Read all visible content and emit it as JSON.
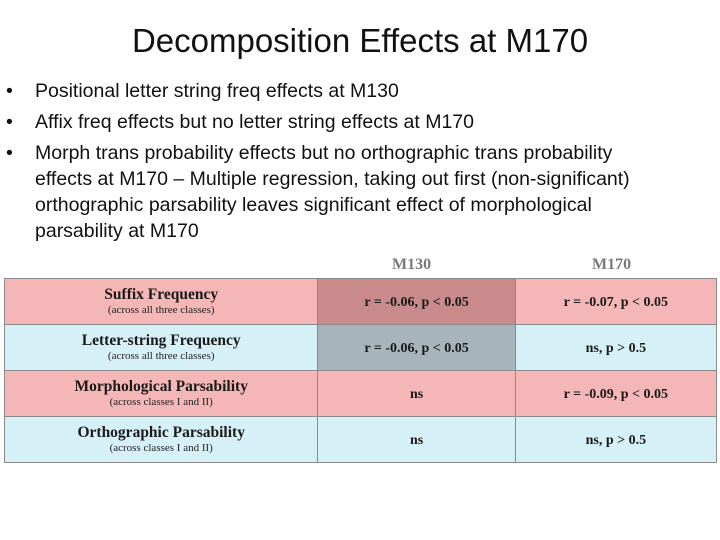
{
  "slide": {
    "title": "Decomposition Effects at M170",
    "bullets": [
      "Positional letter string freq effects at M130",
      "Affix freq effects but no letter string effects at M170",
      "Morph trans probability effects but no orthographic trans probability effects at M170 – Multiple regression, taking out first (non-significant) orthographic parsability leaves significant effect of morphological parsability at M170"
    ]
  },
  "table": {
    "columns": [
      "M130",
      "M170"
    ],
    "rows": [
      {
        "label": "Suffix Frequency",
        "sublabel": "(across all three classes)",
        "m130": "r = -0.06, p < 0.05",
        "m170": "r = -0.07, p < 0.05"
      },
      {
        "label": "Letter-string Frequency",
        "sublabel": "(across all three classes)",
        "m130": "r = -0.06, p < 0.05",
        "m170": "ns, p > 0.5"
      },
      {
        "label": "Morphological Parsability",
        "sublabel": "(across classes I and II)",
        "m130": "ns",
        "m170": "r = -0.09, p < 0.05"
      },
      {
        "label": "Orthographic Parsability",
        "sublabel": "(across classes I and II)",
        "m130": "ns",
        "m170": "ns, p > 0.5"
      }
    ]
  },
  "colors": {
    "row_pink": "#f4b6b6",
    "row_blue": "#d6f0f8",
    "highlight_dark_pink": "#c88a8a",
    "highlight_grey": "#a8b4bc"
  }
}
